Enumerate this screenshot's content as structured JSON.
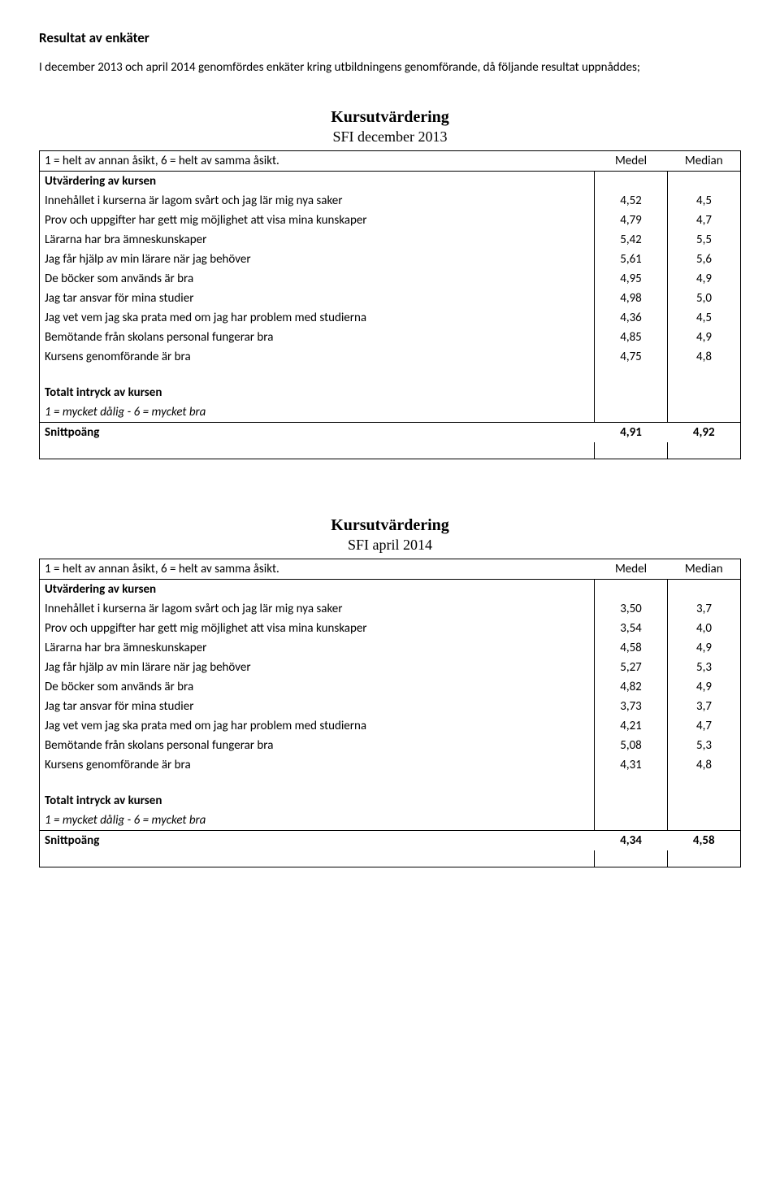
{
  "page": {
    "title": "Resultat av enkäter",
    "intro": "I december 2013 och april 2014 genomfördes enkäter kring utbildningens genomförande, då följande resultat uppnåddes;"
  },
  "headers": {
    "scale": "1 = helt av annan åsikt, 6 = helt av samma åsikt.",
    "medel": "Medel",
    "median": "Median",
    "eval_section": "Utvärdering av kursen",
    "total_section": "Totalt intryck av kursen",
    "total_scale": "1 = mycket dålig - 6 = mycket bra",
    "snitt": "Snittpoäng"
  },
  "eval_title": "Kursutvärdering",
  "tables": [
    {
      "subtitle": "SFI december 2013",
      "rows": [
        {
          "label": "Innehållet i kurserna är lagom svårt och jag lär mig nya saker",
          "medel": "4,52",
          "median": "4,5"
        },
        {
          "label": "Prov och uppgifter har gett mig möjlighet att visa mina kunskaper",
          "medel": "4,79",
          "median": "4,7"
        },
        {
          "label": "Lärarna har bra ämneskunskaper",
          "medel": "5,42",
          "median": "5,5"
        },
        {
          "label": "Jag får hjälp av min lärare när jag behöver",
          "medel": "5,61",
          "median": "5,6"
        },
        {
          "label": "De böcker som används är bra",
          "medel": "4,95",
          "median": "4,9"
        },
        {
          "label": "Jag tar ansvar för mina studier",
          "medel": "4,98",
          "median": "5,0"
        },
        {
          "label": "Jag vet vem jag ska prata med om jag har problem med studierna",
          "medel": "4,36",
          "median": "4,5"
        },
        {
          "label": "Bemötande från skolans personal fungerar bra",
          "medel": "4,85",
          "median": "4,9"
        },
        {
          "label": "Kursens genomförande är bra",
          "medel": "4,75",
          "median": "4,8"
        }
      ],
      "snitt": {
        "medel": "4,91",
        "median": "4,92"
      }
    },
    {
      "subtitle": "SFI april 2014",
      "rows": [
        {
          "label": "Innehållet i kurserna är lagom svårt och jag lär mig nya saker",
          "medel": "3,50",
          "median": "3,7"
        },
        {
          "label": "Prov och uppgifter har gett mig möjlighet att visa mina kunskaper",
          "medel": "3,54",
          "median": "4,0"
        },
        {
          "label": "Lärarna har bra ämneskunskaper",
          "medel": "4,58",
          "median": "4,9"
        },
        {
          "label": "Jag får hjälp av min lärare när jag behöver",
          "medel": "5,27",
          "median": "5,3"
        },
        {
          "label": "De böcker som används är bra",
          "medel": "4,82",
          "median": "4,9"
        },
        {
          "label": "Jag tar ansvar för mina studier",
          "medel": "3,73",
          "median": "3,7"
        },
        {
          "label": "Jag vet vem jag ska prata med om jag har problem med studierna",
          "medel": "4,21",
          "median": "4,7"
        },
        {
          "label": "Bemötande från skolans personal fungerar bra",
          "medel": "5,08",
          "median": "5,3"
        },
        {
          "label": "Kursens genomförande är bra",
          "medel": "4,31",
          "median": "4,8"
        }
      ],
      "snitt": {
        "medel": "4,34",
        "median": "4,58"
      }
    }
  ]
}
